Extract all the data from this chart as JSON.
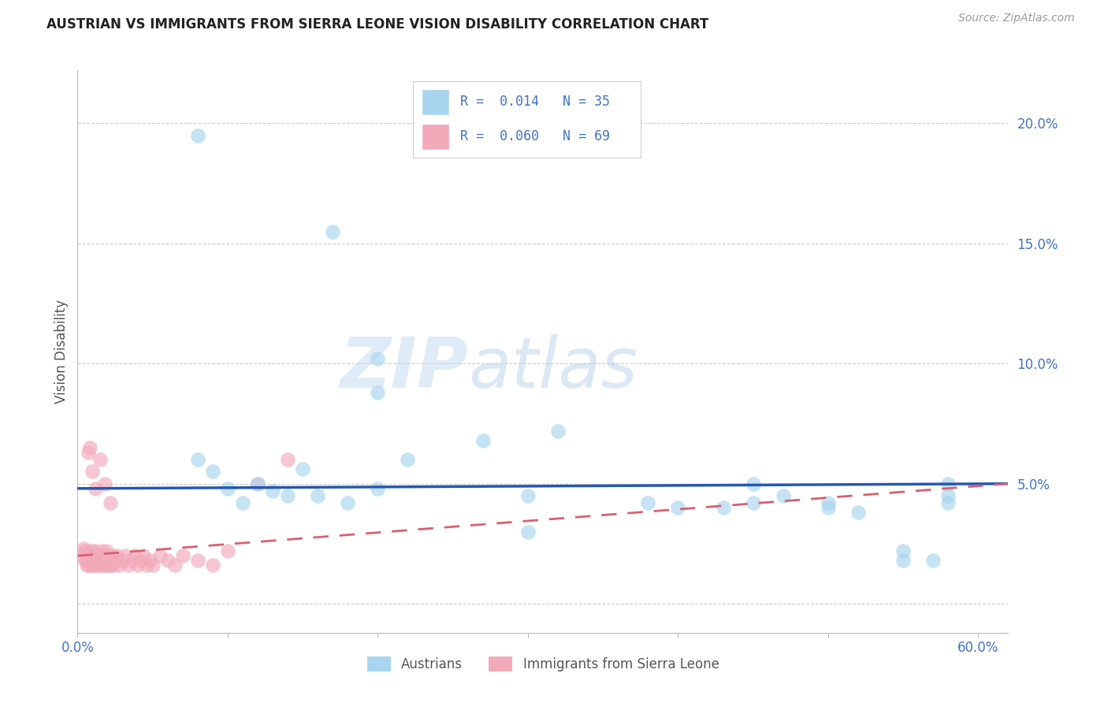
{
  "title": "AUSTRIAN VS IMMIGRANTS FROM SIERRA LEONE VISION DISABILITY CORRELATION CHART",
  "source": "Source: ZipAtlas.com",
  "ylabel": "Vision Disability",
  "xlim": [
    0.0,
    0.62
  ],
  "ylim": [
    -0.012,
    0.222
  ],
  "yticks": [
    0.0,
    0.05,
    0.1,
    0.15,
    0.2
  ],
  "ytick_labels": [
    "",
    "5.0%",
    "10.0%",
    "15.0%",
    "20.0%"
  ],
  "blue_color": "#A8D4EF",
  "pink_color": "#F2AABB",
  "blue_line_color": "#2458B3",
  "pink_line_color": "#D96070",
  "watermark_text": "ZIPatlas",
  "watermark_color": "#C8DFF0",
  "legend_R1": "0.014",
  "legend_N1": "35",
  "legend_R2": "0.060",
  "legend_N2": "69",
  "blue_line_x": [
    0.0,
    0.62
  ],
  "blue_line_y": [
    0.048,
    0.05
  ],
  "pink_line_x": [
    0.0,
    0.62
  ],
  "pink_line_y": [
    0.02,
    0.05
  ],
  "blue_x": [
    0.08,
    0.17,
    0.2,
    0.2,
    0.08,
    0.09,
    0.1,
    0.11,
    0.12,
    0.13,
    0.14,
    0.15,
    0.16,
    0.18,
    0.2,
    0.22,
    0.27,
    0.3,
    0.3,
    0.32,
    0.38,
    0.4,
    0.43,
    0.45,
    0.45,
    0.47,
    0.5,
    0.5,
    0.52,
    0.55,
    0.57,
    0.58,
    0.58,
    0.58,
    0.55
  ],
  "blue_y": [
    0.195,
    0.155,
    0.102,
    0.088,
    0.06,
    0.055,
    0.048,
    0.042,
    0.05,
    0.047,
    0.045,
    0.056,
    0.045,
    0.042,
    0.048,
    0.06,
    0.068,
    0.045,
    0.03,
    0.072,
    0.042,
    0.04,
    0.04,
    0.05,
    0.042,
    0.045,
    0.04,
    0.042,
    0.038,
    0.022,
    0.018,
    0.045,
    0.05,
    0.042,
    0.018
  ],
  "pink_x": [
    0.003,
    0.004,
    0.005,
    0.005,
    0.006,
    0.006,
    0.007,
    0.007,
    0.008,
    0.008,
    0.009,
    0.009,
    0.01,
    0.01,
    0.011,
    0.011,
    0.012,
    0.012,
    0.013,
    0.013,
    0.014,
    0.014,
    0.015,
    0.015,
    0.016,
    0.016,
    0.017,
    0.017,
    0.018,
    0.018,
    0.019,
    0.019,
    0.02,
    0.02,
    0.021,
    0.022,
    0.022,
    0.023,
    0.024,
    0.025,
    0.026,
    0.028,
    0.03,
    0.032,
    0.034,
    0.036,
    0.038,
    0.04,
    0.042,
    0.044,
    0.046,
    0.048,
    0.05,
    0.055,
    0.06,
    0.065,
    0.07,
    0.08,
    0.09,
    0.1,
    0.12,
    0.14,
    0.007,
    0.008,
    0.01,
    0.012,
    0.015,
    0.018,
    0.022
  ],
  "pink_y": [
    0.02,
    0.023,
    0.018,
    0.022,
    0.016,
    0.02,
    0.018,
    0.016,
    0.02,
    0.018,
    0.016,
    0.022,
    0.018,
    0.016,
    0.02,
    0.016,
    0.018,
    0.022,
    0.016,
    0.02,
    0.018,
    0.016,
    0.02,
    0.018,
    0.016,
    0.022,
    0.018,
    0.016,
    0.02,
    0.018,
    0.016,
    0.022,
    0.018,
    0.016,
    0.02,
    0.018,
    0.016,
    0.02,
    0.016,
    0.018,
    0.02,
    0.016,
    0.018,
    0.02,
    0.016,
    0.018,
    0.02,
    0.016,
    0.018,
    0.02,
    0.016,
    0.018,
    0.016,
    0.02,
    0.018,
    0.016,
    0.02,
    0.018,
    0.016,
    0.022,
    0.05,
    0.06,
    0.063,
    0.065,
    0.055,
    0.048,
    0.06,
    0.05,
    0.042
  ]
}
